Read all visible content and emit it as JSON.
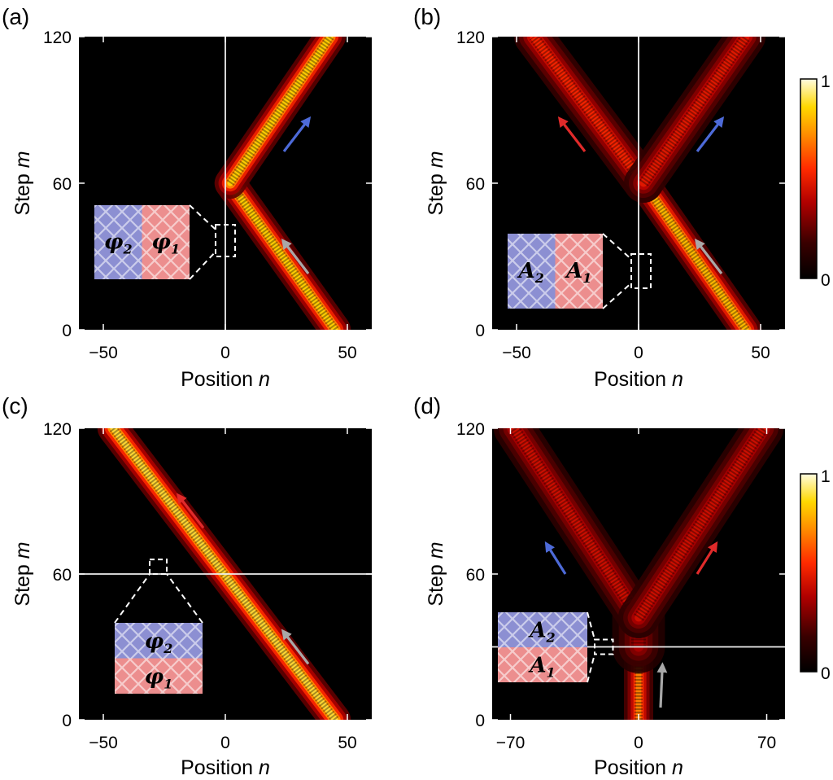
{
  "chart_data": [
    {
      "type": "heatmap",
      "panel_label": "(a)",
      "xlabel": "Position n",
      "ylabel": "Step m",
      "xlim": [
        -60,
        60
      ],
      "ylim": [
        0,
        120
      ],
      "xticks": [
        "−50",
        "0",
        "50"
      ],
      "yticks": [
        "0",
        "60",
        "120"
      ],
      "xtick_values": [
        -50,
        0,
        50
      ],
      "ytick_values": [
        0,
        60,
        120
      ],
      "interface": {
        "orientation": "vertical",
        "value": 0
      },
      "beams": [
        {
          "from": [
            45,
            0
          ],
          "to": [
            2,
            60
          ],
          "intensity": 0.95,
          "halfwidth": 4
        },
        {
          "from": [
            2,
            60
          ],
          "to": [
            43,
            120
          ],
          "intensity": 0.95,
          "halfwidth": 4
        }
      ],
      "arrows": [
        {
          "color": "#a8a8a8",
          "from": [
            34,
            23
          ],
          "to": [
            24,
            36
          ]
        },
        {
          "color": "#4d6ad8",
          "from": [
            24,
            73
          ],
          "to": [
            34,
            86
          ]
        }
      ],
      "inset": {
        "left": "φ2",
        "right": "φ1",
        "layout": "horizontal",
        "left_color": "#8c8fd2",
        "right_color": "#ec8e8e",
        "zoom_box": {
          "x": [
            -4,
            4
          ],
          "y": [
            30,
            43
          ]
        }
      }
    },
    {
      "type": "heatmap",
      "panel_label": "(b)",
      "xlabel": "Position n",
      "ylabel": "Step m",
      "xlim": [
        -60,
        60
      ],
      "ylim": [
        0,
        120
      ],
      "xticks": [
        "−50",
        "0",
        "50"
      ],
      "yticks": [
        "0",
        "60",
        "120"
      ],
      "xtick_values": [
        -50,
        0,
        50
      ],
      "ytick_values": [
        0,
        60,
        120
      ],
      "interface": {
        "orientation": "vertical",
        "value": 0
      },
      "beams": [
        {
          "from": [
            44,
            0
          ],
          "to": [
            2,
            60
          ],
          "intensity": 0.9,
          "halfwidth": 4
        },
        {
          "from": [
            2,
            60
          ],
          "to": [
            -43,
            120
          ],
          "intensity": 0.55,
          "halfwidth": 5
        },
        {
          "from": [
            2,
            60
          ],
          "to": [
            44,
            120
          ],
          "intensity": 0.5,
          "halfwidth": 5
        }
      ],
      "arrows": [
        {
          "color": "#a8a8a8",
          "from": [
            34,
            23
          ],
          "to": [
            24,
            36
          ]
        },
        {
          "color": "#e02a2a",
          "from": [
            -22,
            73
          ],
          "to": [
            -32,
            86
          ]
        },
        {
          "color": "#4d6ad8",
          "from": [
            24,
            73
          ],
          "to": [
            34,
            86
          ]
        }
      ],
      "inset": {
        "left": "A2",
        "right": "A1",
        "layout": "horizontal",
        "left_color": "#8c8fd2",
        "right_color": "#ec8e8e",
        "zoom_box": {
          "x": [
            -3,
            5
          ],
          "y": [
            17,
            31
          ]
        }
      }
    },
    {
      "type": "heatmap",
      "panel_label": "(c)",
      "xlabel": "Position n",
      "ylabel": "Step m",
      "xlim": [
        -60,
        60
      ],
      "ylim": [
        0,
        120
      ],
      "xticks": [
        "−50",
        "0",
        "50"
      ],
      "yticks": [
        "0",
        "60",
        "120"
      ],
      "xtick_values": [
        -50,
        0,
        50
      ],
      "ytick_values": [
        0,
        60,
        120
      ],
      "interface": {
        "orientation": "horizontal",
        "value": 60
      },
      "beams": [
        {
          "from": [
            45,
            0
          ],
          "to": [
            -46,
            120
          ],
          "intensity": 1.0,
          "halfwidth": 4
        }
      ],
      "arrows": [
        {
          "color": "#a8a8a8",
          "from": [
            34,
            23
          ],
          "to": [
            24,
            36
          ]
        },
        {
          "color": "#e02a2a",
          "from": [
            -9,
            79
          ],
          "to": [
            -19,
            92
          ]
        }
      ],
      "inset": {
        "top": "φ2",
        "bottom": "φ1",
        "layout": "vertical",
        "top_color": "#8c8fd2",
        "bottom_color": "#ec8e8e",
        "zoom_box": {
          "x": [
            -31,
            -24
          ],
          "y": [
            60,
            66
          ]
        }
      }
    },
    {
      "type": "heatmap",
      "panel_label": "(d)",
      "xlabel": "Position n",
      "ylabel": "Step m",
      "xlim": [
        -80,
        80
      ],
      "ylim": [
        0,
        120
      ],
      "xticks": [
        "−70",
        "0",
        "70"
      ],
      "yticks": [
        "0",
        "60",
        "120"
      ],
      "xtick_values": [
        -70,
        0,
        70
      ],
      "ytick_values": [
        0,
        60,
        120
      ],
      "interface": {
        "orientation": "horizontal",
        "value": 30
      },
      "beams": [
        {
          "from": [
            0,
            0
          ],
          "to": [
            0,
            30
          ],
          "intensity": 0.75,
          "halfwidth": 5
        },
        {
          "from": [
            0,
            30
          ],
          "to": [
            0,
            42
          ],
          "intensity": 0.35,
          "halfwidth": 9
        },
        {
          "from": [
            0,
            42
          ],
          "to": [
            -68,
            120
          ],
          "intensity": 0.45,
          "halfwidth": 7
        },
        {
          "from": [
            0,
            42
          ],
          "to": [
            68,
            120
          ],
          "intensity": 0.45,
          "halfwidth": 7
        }
      ],
      "arrows": [
        {
          "color": "#a8a8a8",
          "from": [
            12,
            5
          ],
          "to": [
            13,
            22
          ]
        },
        {
          "color": "#4d6ad8",
          "from": [
            -40,
            60
          ],
          "to": [
            -50,
            72
          ]
        },
        {
          "color": "#e02a2a",
          "from": [
            32,
            60
          ],
          "to": [
            42,
            72
          ]
        }
      ],
      "inset": {
        "top": "A2",
        "bottom": "A1",
        "layout": "vertical",
        "top_color": "#8c8fd2",
        "bottom_color": "#ec8e8e",
        "zoom_box": {
          "x": [
            -24,
            -14
          ],
          "y": [
            27,
            33
          ]
        }
      }
    }
  ],
  "colorbars": [
    {
      "max_label": "1",
      "min_label": "0"
    },
    {
      "max_label": "1",
      "min_label": "0"
    }
  ],
  "colormap": [
    "#000000",
    "#5a0000",
    "#b40000",
    "#ff2a00",
    "#ff8a00",
    "#ffd400",
    "#fffdd0"
  ]
}
